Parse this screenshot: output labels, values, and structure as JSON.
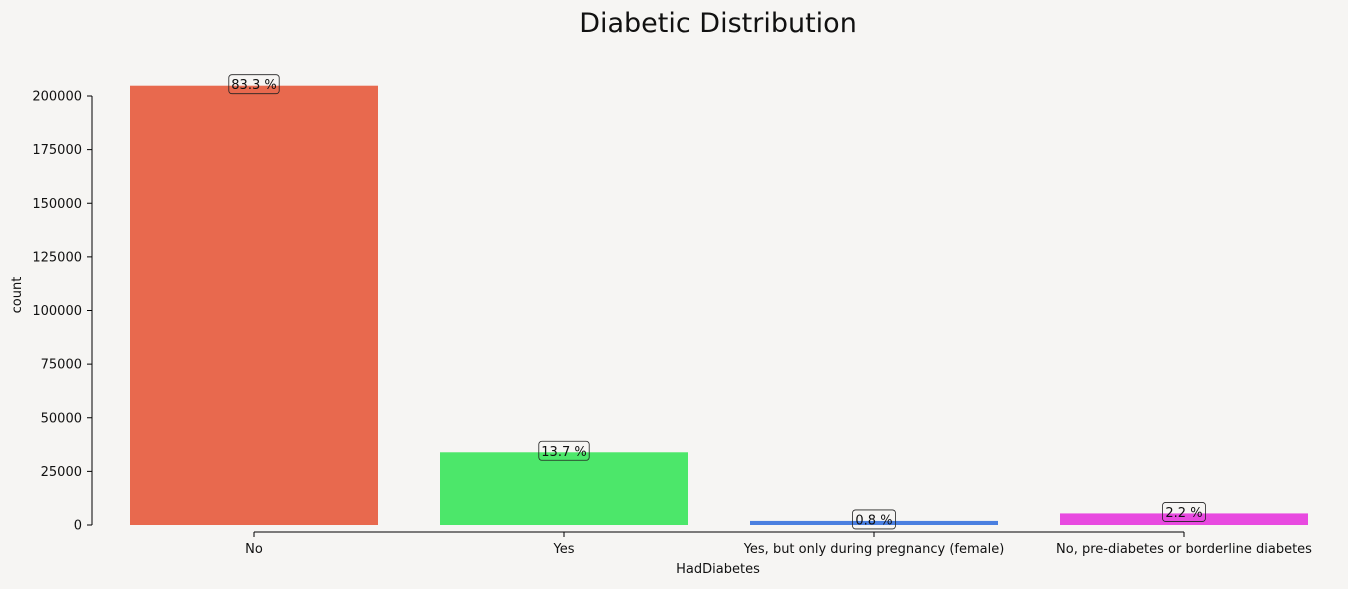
{
  "chart_data": {
    "type": "bar",
    "title": "Diabetic Distribution",
    "xlabel": "HadDiabetes",
    "ylabel": "count",
    "categories": [
      "No",
      "Yes",
      "Yes, but only during pregnancy (female)",
      "No, pre-diabetes or borderline diabetes"
    ],
    "values": [
      204800,
      33900,
      1900,
      5400
    ],
    "data_labels": [
      "83.3 %",
      "13.7 %",
      "0.8 %",
      "2.2 %"
    ],
    "colors": [
      "#e8694e",
      "#4ce76a",
      "#4a7fe0",
      "#e84ae0"
    ],
    "y_ticks": [
      0,
      25000,
      50000,
      75000,
      100000,
      125000,
      150000,
      175000,
      200000
    ],
    "ylim": [
      0,
      210000
    ],
    "grid": false,
    "legend": "none"
  }
}
